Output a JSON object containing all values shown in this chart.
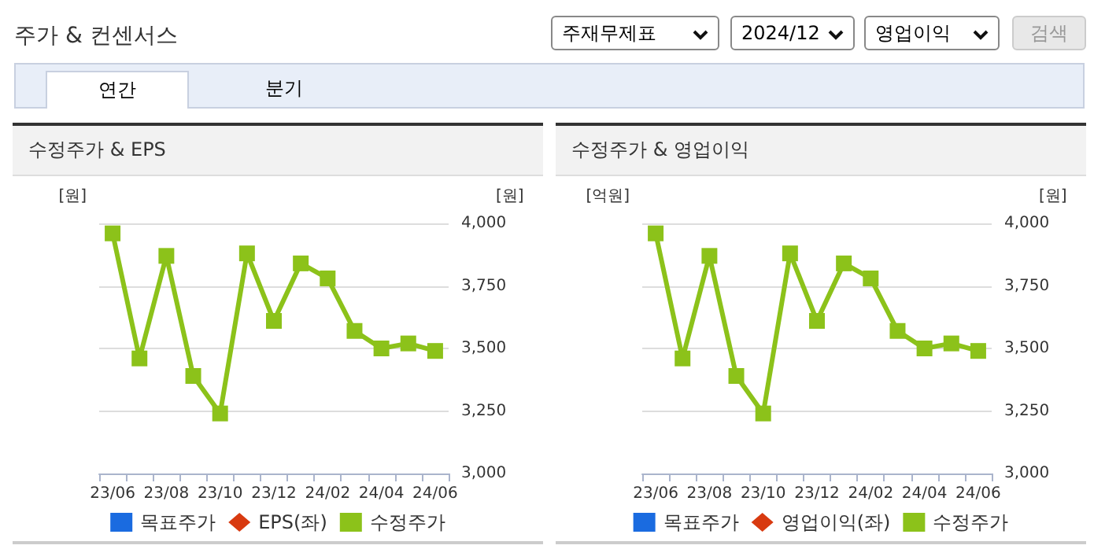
{
  "chart_data": [
    {
      "type": "other",
      "title": "주가 & 컨센서스",
      "annotations": [
        "주재무제표",
        "2024/12",
        "영업이익",
        "검색",
        "연간",
        "분기"
      ]
    },
    {
      "type": "line",
      "title": "수정주가 & EPS",
      "ylabel": "[원]",
      "y2label": "[원]",
      "categories": [
        "23/06",
        null,
        "23/08",
        null,
        "23/10",
        null,
        "23/12",
        null,
        "24/02",
        null,
        "24/04",
        null,
        "24/06"
      ],
      "y2lim": [
        3000,
        4000
      ],
      "y2ticks": [
        {
          "value": 3000,
          "label": "3,000"
        },
        {
          "value": 3250,
          "label": "3,250"
        },
        {
          "value": 3500,
          "label": "3,500"
        },
        {
          "value": 3750,
          "label": "3,750"
        },
        {
          "value": 4000,
          "label": "4,000"
        }
      ],
      "grid": "y",
      "legend": "bottom",
      "series": [
        {
          "name": "목표주가",
          "type": "bar",
          "color": "#1a6be0",
          "values": [
            null,
            null,
            null,
            null,
            null,
            null,
            null,
            null,
            null,
            null,
            null,
            null,
            null
          ]
        },
        {
          "name": "EPS(좌)",
          "type": "line",
          "marker": "diamond",
          "color": "#d83a10",
          "values": [
            null,
            null,
            null,
            null,
            null,
            null,
            null,
            null,
            null,
            null,
            null,
            null,
            null
          ]
        },
        {
          "name": "수정주가",
          "type": "line",
          "marker": "square",
          "axis": "y2",
          "color": "#8cc21a",
          "values": [
            3960,
            3460,
            3870,
            3390,
            3240,
            3880,
            3610,
            3840,
            3780,
            3570,
            3500,
            3520,
            3490
          ]
        }
      ]
    },
    {
      "type": "line",
      "title": "수정주가 & 영업이익",
      "ylabel": "[억원]",
      "y2label": "[원]",
      "categories": [
        "23/06",
        null,
        "23/08",
        null,
        "23/10",
        null,
        "23/12",
        null,
        "24/02",
        null,
        "24/04",
        null,
        "24/06"
      ],
      "y2lim": [
        3000,
        4000
      ],
      "y2ticks": [
        {
          "value": 3000,
          "label": "3,000"
        },
        {
          "value": 3250,
          "label": "3,250"
        },
        {
          "value": 3500,
          "label": "3,500"
        },
        {
          "value": 3750,
          "label": "3,750"
        },
        {
          "value": 4000,
          "label": "4,000"
        }
      ],
      "grid": "y",
      "legend": "bottom",
      "series": [
        {
          "name": "목표주가",
          "type": "bar",
          "color": "#1a6be0",
          "values": [
            null,
            null,
            null,
            null,
            null,
            null,
            null,
            null,
            null,
            null,
            null,
            null,
            null
          ]
        },
        {
          "name": "영업이익(좌)",
          "type": "line",
          "marker": "diamond",
          "color": "#d83a10",
          "values": [
            null,
            null,
            null,
            null,
            null,
            null,
            null,
            null,
            null,
            null,
            null,
            null,
            null
          ]
        },
        {
          "name": "수정주가",
          "type": "line",
          "marker": "square",
          "axis": "y2",
          "color": "#8cc21a",
          "values": [
            3960,
            3460,
            3870,
            3390,
            3240,
            3880,
            3610,
            3840,
            3780,
            3570,
            3500,
            3520,
            3490
          ]
        }
      ]
    }
  ]
}
